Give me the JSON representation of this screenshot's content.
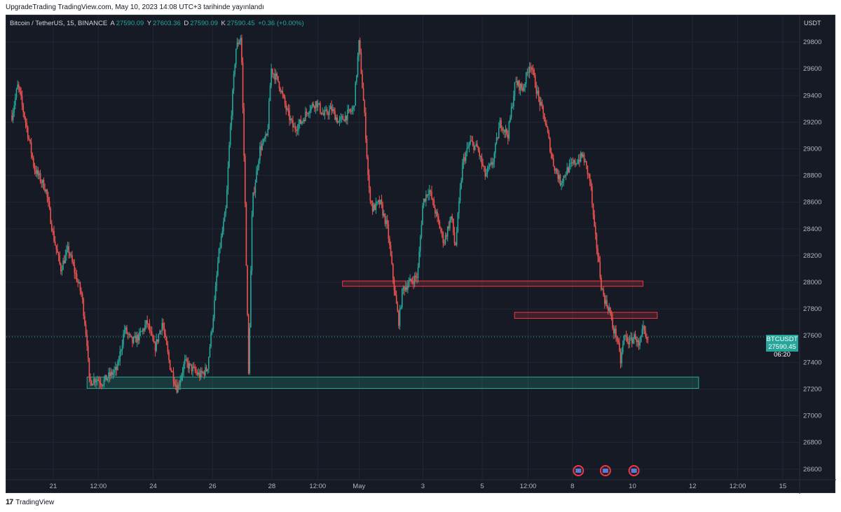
{
  "published_line": "UpgradeTrading TradingView.com, May 10, 2023 14:08 UTC+3 tarihinde yayınlandı",
  "footer_brand": "TradingView",
  "legend": {
    "symbol": "Bitcoin / TetherUS, 15, BINANCE",
    "o_label": "A",
    "o": "27590.09",
    "h_label": "Y",
    "h": "27603.36",
    "l_label": "D",
    "l": "27590.09",
    "c_label": "K",
    "c": "27590.45",
    "change": "+0.36 (+0.00%)"
  },
  "currency": "USDT",
  "price_tag": {
    "symbol": "BTCUSDT",
    "price": "27590.45",
    "countdown": "06:20"
  },
  "colors": {
    "up": "#26a69a",
    "down": "#ef5350",
    "bg": "#161a25",
    "grid": "#232734",
    "resistance": "#f23645",
    "support": "#22ab94"
  },
  "chart_data": {
    "type": "candlestick",
    "y_unit": "USDT",
    "ylim": [
      26520,
      30000
    ],
    "y_ticks": [
      26600,
      26800,
      27000,
      27200,
      27400,
      27600,
      27800,
      28000,
      28200,
      28400,
      28600,
      28800,
      29000,
      29200,
      29400,
      29600,
      29800
    ],
    "x_ticks": [
      {
        "label": "21",
        "t": 0.055
      },
      {
        "label": "12:00",
        "t": 0.115
      },
      {
        "label": "24",
        "t": 0.188
      },
      {
        "label": "26",
        "t": 0.267
      },
      {
        "label": "28",
        "t": 0.346
      },
      {
        "label": "12:00",
        "t": 0.407
      },
      {
        "label": "May",
        "t": 0.462
      },
      {
        "label": "3",
        "t": 0.547
      },
      {
        "label": "5",
        "t": 0.626
      },
      {
        "label": "12:00",
        "t": 0.687
      },
      {
        "label": "8",
        "t": 0.746
      },
      {
        "label": "10",
        "t": 0.826
      },
      {
        "label": "12",
        "t": 0.906
      },
      {
        "label": "12:00",
        "t": 0.966
      },
      {
        "label": "15",
        "t": 1.026
      }
    ],
    "candles_end_t": 0.848,
    "path": [
      [
        0.0,
        29250
      ],
      [
        0.008,
        29480
      ],
      [
        0.02,
        29150
      ],
      [
        0.03,
        28850
      ],
      [
        0.045,
        28700
      ],
      [
        0.055,
        28350
      ],
      [
        0.065,
        28100
      ],
      [
        0.075,
        28250
      ],
      [
        0.085,
        28050
      ],
      [
        0.093,
        27900
      ],
      [
        0.1,
        27550
      ],
      [
        0.103,
        27250
      ],
      [
        0.112,
        27280
      ],
      [
        0.12,
        27250
      ],
      [
        0.13,
        27300
      ],
      [
        0.14,
        27350
      ],
      [
        0.15,
        27650
      ],
      [
        0.16,
        27550
      ],
      [
        0.17,
        27600
      ],
      [
        0.18,
        27700
      ],
      [
        0.19,
        27500
      ],
      [
        0.2,
        27700
      ],
      [
        0.21,
        27380
      ],
      [
        0.22,
        27200
      ],
      [
        0.23,
        27400
      ],
      [
        0.24,
        27350
      ],
      [
        0.25,
        27300
      ],
      [
        0.26,
        27350
      ],
      [
        0.268,
        27750
      ],
      [
        0.275,
        28200
      ],
      [
        0.285,
        28550
      ],
      [
        0.29,
        29100
      ],
      [
        0.298,
        29750
      ],
      [
        0.305,
        29850
      ],
      [
        0.31,
        28700
      ],
      [
        0.315,
        27300
      ],
      [
        0.32,
        28600
      ],
      [
        0.33,
        29000
      ],
      [
        0.34,
        29100
      ],
      [
        0.345,
        29600
      ],
      [
        0.355,
        29500
      ],
      [
        0.365,
        29300
      ],
      [
        0.375,
        29150
      ],
      [
        0.385,
        29200
      ],
      [
        0.395,
        29300
      ],
      [
        0.405,
        29350
      ],
      [
        0.415,
        29250
      ],
      [
        0.425,
        29300
      ],
      [
        0.435,
        29200
      ],
      [
        0.445,
        29250
      ],
      [
        0.455,
        29300
      ],
      [
        0.462,
        29800
      ],
      [
        0.47,
        29200
      ],
      [
        0.475,
        28700
      ],
      [
        0.48,
        28550
      ],
      [
        0.49,
        28600
      ],
      [
        0.5,
        28400
      ],
      [
        0.51,
        27900
      ],
      [
        0.515,
        27700
      ],
      [
        0.52,
        27950
      ],
      [
        0.53,
        28000
      ],
      [
        0.54,
        28050
      ],
      [
        0.547,
        28600
      ],
      [
        0.555,
        28700
      ],
      [
        0.565,
        28500
      ],
      [
        0.575,
        28300
      ],
      [
        0.585,
        28500
      ],
      [
        0.59,
        28250
      ],
      [
        0.6,
        28900
      ],
      [
        0.61,
        29050
      ],
      [
        0.62,
        29000
      ],
      [
        0.63,
        28800
      ],
      [
        0.64,
        28900
      ],
      [
        0.65,
        29200
      ],
      [
        0.66,
        29100
      ],
      [
        0.67,
        29500
      ],
      [
        0.68,
        29450
      ],
      [
        0.69,
        29650
      ],
      [
        0.7,
        29400
      ],
      [
        0.71,
        29200
      ],
      [
        0.72,
        28900
      ],
      [
        0.73,
        28750
      ],
      [
        0.74,
        28850
      ],
      [
        0.75,
        28900
      ],
      [
        0.76,
        28950
      ],
      [
        0.77,
        28750
      ],
      [
        0.775,
        28400
      ],
      [
        0.78,
        28200
      ],
      [
        0.785,
        27950
      ],
      [
        0.79,
        27850
      ],
      [
        0.795,
        27800
      ],
      [
        0.8,
        27650
      ],
      [
        0.805,
        27600
      ],
      [
        0.81,
        27400
      ],
      [
        0.815,
        27600
      ],
      [
        0.822,
        27550
      ],
      [
        0.83,
        27600
      ],
      [
        0.835,
        27500
      ],
      [
        0.84,
        27650
      ],
      [
        0.845,
        27550
      ],
      [
        0.848,
        27590
      ]
    ],
    "zones": [
      {
        "kind": "resistance",
        "t0": 0.44,
        "t1": 0.84,
        "y_low": 27970,
        "y_high": 28010
      },
      {
        "kind": "resistance",
        "t0": 0.669,
        "t1": 0.859,
        "y_low": 27730,
        "y_high": 27775
      },
      {
        "kind": "support",
        "t0": 0.1,
        "t1": 0.914,
        "y_low": 27205,
        "y_high": 27290
      }
    ],
    "current_price": 27590.45,
    "event_markers_t": [
      0.754,
      0.79,
      0.828
    ]
  }
}
